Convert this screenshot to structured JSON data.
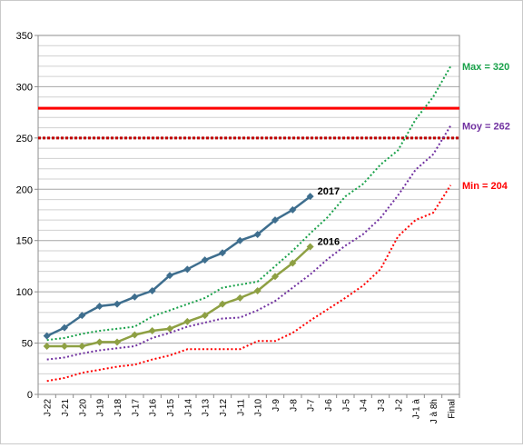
{
  "chart_data": {
    "type": "line",
    "title": "",
    "xlabel": "",
    "ylabel": "",
    "ylim": [
      0,
      350
    ],
    "y_ticks": [
      0,
      50,
      100,
      150,
      200,
      250,
      300,
      350
    ],
    "grid": true,
    "legend": "none",
    "categories": [
      "J-22",
      "J-21",
      "J-20",
      "J-19",
      "J-18",
      "J-17",
      "J-16",
      "J-15",
      "J-14",
      "J-13",
      "J-12",
      "J-11",
      "J-10",
      "J-9",
      "J-8",
      "J-7",
      "J-6",
      "J-5",
      "J-4",
      "J-3",
      "J-2",
      "J-1 à",
      "J à 8h",
      "Final"
    ],
    "series": [
      {
        "name": "2017",
        "style": "solid-markers",
        "color": "#3E6E8E",
        "values": [
          57,
          65,
          77,
          86,
          88,
          95,
          101,
          116,
          122,
          131,
          138,
          150,
          156,
          170,
          180,
          193,
          null,
          null,
          null,
          null,
          null,
          null,
          null,
          null
        ]
      },
      {
        "name": "2016",
        "style": "solid-markers",
        "color": "#8EA043",
        "values": [
          47,
          47,
          47,
          51,
          51,
          58,
          62,
          64,
          71,
          77,
          88,
          94,
          101,
          115,
          128,
          144,
          null,
          null,
          null,
          null,
          null,
          null,
          null,
          null
        ]
      },
      {
        "name": "",
        "style": "dotted",
        "color": "#19A14A",
        "values": [
          53,
          55,
          59,
          62,
          64,
          66,
          76,
          82,
          88,
          94,
          104,
          107,
          110,
          125,
          140,
          157,
          173,
          193,
          205,
          224,
          238,
          268,
          290,
          320
        ]
      },
      {
        "name": "",
        "style": "dotted",
        "color": "#7030A0",
        "values": [
          34,
          36,
          40,
          43,
          45,
          47,
          55,
          60,
          66,
          70,
          74,
          75,
          82,
          91,
          104,
          117,
          132,
          145,
          156,
          172,
          194,
          219,
          234,
          262
        ]
      },
      {
        "name": "",
        "style": "dotted",
        "color": "#FF0000",
        "values": [
          13,
          16,
          21,
          24,
          27,
          29,
          34,
          38,
          44,
          44,
          44,
          44,
          52,
          52,
          60,
          72,
          83,
          94,
          106,
          122,
          154,
          170,
          177,
          204
        ]
      }
    ],
    "reference_lines": [
      {
        "value": 279,
        "style": "solid",
        "color": "#FF0000"
      },
      {
        "value": 250,
        "style": "dotted",
        "color": "#C00000"
      }
    ],
    "annotations": [
      {
        "text": "Max = 320",
        "color": "#19A14A"
      },
      {
        "text": "Moy = 262",
        "color": "#7030A0"
      },
      {
        "text": "Min = 204",
        "color": "#FF0000"
      }
    ]
  }
}
